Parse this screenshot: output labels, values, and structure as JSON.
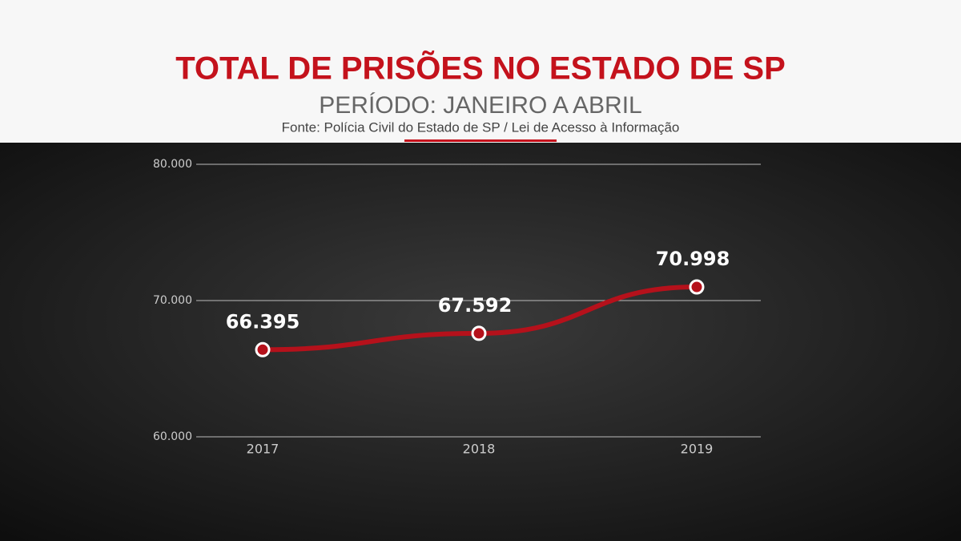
{
  "chart_data": {
    "type": "line",
    "title": "TOTAL DE PRISÕES NO ESTADO DE SP",
    "subtitle": "PERÍODO: JANEIRO A ABRIL",
    "source": "Fonte: Polícia Civil do Estado de SP / Lei de Acesso à Informação",
    "categories": [
      "2017",
      "2018",
      "2019"
    ],
    "values": [
      66395,
      67592,
      70998
    ],
    "value_labels": [
      "66.395",
      "67.592",
      "70.998"
    ],
    "color": "#b5111b",
    "ylim": [
      60000,
      80000
    ],
    "yticks": [
      {
        "value": 60000,
        "label": "60.000"
      },
      {
        "value": 70000,
        "label": "70.000"
      },
      {
        "value": 80000,
        "label": "80.000"
      }
    ],
    "grid": true
  }
}
